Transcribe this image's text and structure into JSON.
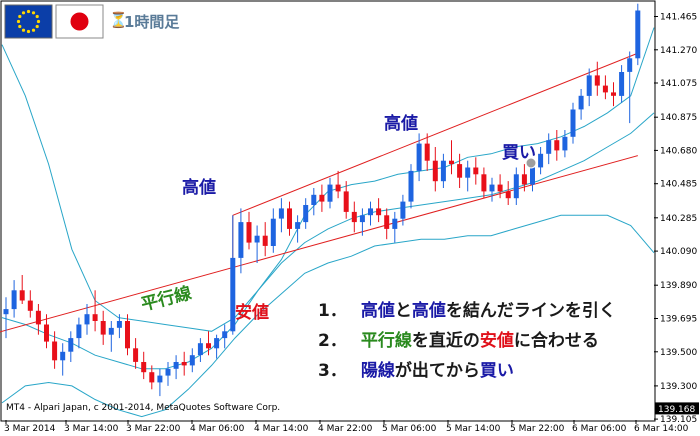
{
  "header": {
    "timeframe": "1時間足",
    "flags": [
      "eu-flag-icon",
      "japan-flag-icon"
    ],
    "hourglass_icon": "hourglass-icon"
  },
  "copyright": "MT4 - Alpari Japan, c 2001-2014, MetaQuotes Software Corp.",
  "annotations": {
    "high_left": "高値",
    "high_right": "高値",
    "low": "安値",
    "parallel": "平行線",
    "buy": "買い"
  },
  "steps": [
    {
      "num": "1．",
      "parts": [
        {
          "t": "高値",
          "c": "blue"
        },
        {
          "t": "と",
          "c": "k"
        },
        {
          "t": "高値",
          "c": "blue"
        },
        {
          "t": "を結んだラインを引く",
          "c": "k"
        }
      ]
    },
    {
      "num": "2．",
      "parts": [
        {
          "t": "平行線",
          "c": "green"
        },
        {
          "t": "を直近の",
          "c": "k"
        },
        {
          "t": "安値",
          "c": "red"
        },
        {
          "t": "に合わせる",
          "c": "k"
        }
      ]
    },
    {
      "num": "3．",
      "parts": [
        {
          "t": "陽線",
          "c": "blue"
        },
        {
          "t": "が出てから",
          "c": "k"
        },
        {
          "t": "買い",
          "c": "blue"
        }
      ]
    }
  ],
  "colors": {
    "bull": "#1e64e0",
    "bear": "#e8101a",
    "band": "#29a6c8",
    "channel": "#e02020",
    "price_box": "#000000"
  },
  "chart_data": {
    "type": "candlestick",
    "symbol": "EURJPY",
    "timeframe": "1時間足",
    "current_price": "139.168",
    "ylim": [
      139.1,
      141.55
    ],
    "y_ticks": [
      "141.465",
      "141.270",
      "141.075",
      "140.875",
      "140.680",
      "140.485",
      "140.285",
      "140.090",
      "139.890",
      "139.695",
      "139.500",
      "139.300",
      "139.105"
    ],
    "x_ticks": [
      "3 Mar 2014",
      "3 Mar 14:00",
      "3 Mar 22:00",
      "4 Mar 06:00",
      "4 Mar 14:00",
      "4 Mar 22:00",
      "5 Mar 06:00",
      "5 Mar 14:00",
      "5 Mar 22:00",
      "6 Mar 06:00",
      "6 Mar 14:00"
    ],
    "candles": [
      [
        139.72,
        139.82,
        139.58,
        139.75
      ],
      [
        139.75,
        139.92,
        139.7,
        139.86
      ],
      [
        139.86,
        139.95,
        139.78,
        139.8
      ],
      [
        139.8,
        139.86,
        139.7,
        139.74
      ],
      [
        139.74,
        139.78,
        139.6,
        139.66
      ],
      [
        139.66,
        139.72,
        139.52,
        139.56
      ],
      [
        139.56,
        139.62,
        139.4,
        139.45
      ],
      [
        139.45,
        139.55,
        139.36,
        139.5
      ],
      [
        139.5,
        139.62,
        139.44,
        139.58
      ],
      [
        139.58,
        139.7,
        139.52,
        139.66
      ],
      [
        139.66,
        139.78,
        139.6,
        139.72
      ],
      [
        139.72,
        139.86,
        139.62,
        139.68
      ],
      [
        139.68,
        139.74,
        139.54,
        139.6
      ],
      [
        139.6,
        139.68,
        139.5,
        139.64
      ],
      [
        139.64,
        139.72,
        139.58,
        139.68
      ],
      [
        139.68,
        139.72,
        139.48,
        139.52
      ],
      [
        139.52,
        139.58,
        139.4,
        139.44
      ],
      [
        139.44,
        139.5,
        139.34,
        139.38
      ],
      [
        139.38,
        139.42,
        139.28,
        139.32
      ],
      [
        139.32,
        139.4,
        139.24,
        139.36
      ],
      [
        139.36,
        139.44,
        139.3,
        139.4
      ],
      [
        139.4,
        139.48,
        139.34,
        139.44
      ],
      [
        139.44,
        139.5,
        139.36,
        139.42
      ],
      [
        139.42,
        139.52,
        139.38,
        139.48
      ],
      [
        139.48,
        139.58,
        139.44,
        139.55
      ],
      [
        139.55,
        139.62,
        139.48,
        139.52
      ],
      [
        139.52,
        139.6,
        139.46,
        139.58
      ],
      [
        139.58,
        139.66,
        139.52,
        139.62
      ],
      [
        139.62,
        140.3,
        139.6,
        140.05
      ],
      [
        140.05,
        140.34,
        139.96,
        140.26
      ],
      [
        140.26,
        140.32,
        140.1,
        140.14
      ],
      [
        140.14,
        140.24,
        140.02,
        140.18
      ],
      [
        140.18,
        140.26,
        140.06,
        140.12
      ],
      [
        140.12,
        140.34,
        140.08,
        140.28
      ],
      [
        140.28,
        140.4,
        140.2,
        140.34
      ],
      [
        140.34,
        140.38,
        140.18,
        140.22
      ],
      [
        140.22,
        140.3,
        140.14,
        140.26
      ],
      [
        140.26,
        140.4,
        140.22,
        140.36
      ],
      [
        140.36,
        140.46,
        140.3,
        140.42
      ],
      [
        140.42,
        140.48,
        140.32,
        140.38
      ],
      [
        140.38,
        140.52,
        140.34,
        140.48
      ],
      [
        140.48,
        140.56,
        140.4,
        140.44
      ],
      [
        140.44,
        140.5,
        140.28,
        140.32
      ],
      [
        140.32,
        140.38,
        140.2,
        140.26
      ],
      [
        140.26,
        140.34,
        140.18,
        140.3
      ],
      [
        140.3,
        140.38,
        140.24,
        140.34
      ],
      [
        140.34,
        140.4,
        140.26,
        140.3
      ],
      [
        140.3,
        140.34,
        140.16,
        140.22
      ],
      [
        140.22,
        140.32,
        140.14,
        140.28
      ],
      [
        140.28,
        140.42,
        140.24,
        140.38
      ],
      [
        140.38,
        140.6,
        140.34,
        140.56
      ],
      [
        140.56,
        140.78,
        140.5,
        140.72
      ],
      [
        140.72,
        140.78,
        140.56,
        140.62
      ],
      [
        140.62,
        140.7,
        140.44,
        140.5
      ],
      [
        140.5,
        140.66,
        140.46,
        140.62
      ],
      [
        140.62,
        140.74,
        140.54,
        140.6
      ],
      [
        140.6,
        140.66,
        140.46,
        140.52
      ],
      [
        140.52,
        140.62,
        140.44,
        140.58
      ],
      [
        140.58,
        140.64,
        140.48,
        140.54
      ],
      [
        140.54,
        140.58,
        140.4,
        140.44
      ],
      [
        140.44,
        140.52,
        140.38,
        140.48
      ],
      [
        140.48,
        140.54,
        140.4,
        140.44
      ],
      [
        140.44,
        140.5,
        140.36,
        140.4
      ],
      [
        140.4,
        140.58,
        140.36,
        140.54
      ],
      [
        140.54,
        140.6,
        140.44,
        140.48
      ],
      [
        140.48,
        140.62,
        140.44,
        140.58
      ],
      [
        140.58,
        140.7,
        140.54,
        140.66
      ],
      [
        140.66,
        140.78,
        140.6,
        140.74
      ],
      [
        140.74,
        140.8,
        140.62,
        140.68
      ],
      [
        140.68,
        140.8,
        140.64,
        140.76
      ],
      [
        140.76,
        140.96,
        140.72,
        140.92
      ],
      [
        140.92,
        141.04,
        140.86,
        141.0
      ],
      [
        141.0,
        141.16,
        140.94,
        141.12
      ],
      [
        141.12,
        141.2,
        141.0,
        141.06
      ],
      [
        141.06,
        141.12,
        140.98,
        141.02
      ],
      [
        141.02,
        141.08,
        140.94,
        141.0
      ],
      [
        141.0,
        141.18,
        140.96,
        141.14
      ],
      [
        141.14,
        141.26,
        140.84,
        141.22
      ],
      [
        141.22,
        141.54,
        141.18,
        141.5
      ]
    ],
    "bands": {
      "upper": [
        141.3,
        141.0,
        140.6,
        140.1,
        139.8,
        139.7,
        139.68,
        139.66,
        139.64,
        139.62,
        139.7,
        139.86,
        140.04,
        140.3,
        140.44,
        140.48,
        140.5,
        140.54,
        140.56,
        140.58,
        140.64,
        140.66,
        140.7,
        140.72,
        140.76,
        140.82,
        140.9,
        141.0,
        141.4
      ],
      "middle": [
        139.7,
        139.66,
        139.6,
        139.55,
        139.48,
        139.44,
        139.4,
        139.4,
        139.44,
        139.52,
        139.66,
        139.86,
        140.02,
        140.14,
        140.22,
        140.28,
        140.32,
        140.34,
        140.36,
        140.38,
        140.4,
        140.42,
        140.46,
        140.5,
        140.56,
        140.62,
        140.7,
        140.78,
        140.9
      ],
      "lower": [
        139.2,
        139.3,
        139.32,
        139.3,
        139.22,
        139.16,
        139.12,
        139.16,
        139.28,
        139.42,
        139.58,
        139.72,
        139.84,
        139.96,
        140.02,
        140.06,
        140.12,
        140.14,
        140.16,
        140.16,
        140.18,
        140.18,
        140.22,
        140.26,
        140.3,
        140.3,
        140.3,
        140.24,
        140.08
      ]
    },
    "channel": {
      "upper": [
        [
          28,
          140.3
        ],
        [
          78,
          141.25
        ]
      ],
      "lower": [
        [
          -2,
          139.6
        ],
        [
          78,
          140.65
        ]
      ]
    }
  }
}
